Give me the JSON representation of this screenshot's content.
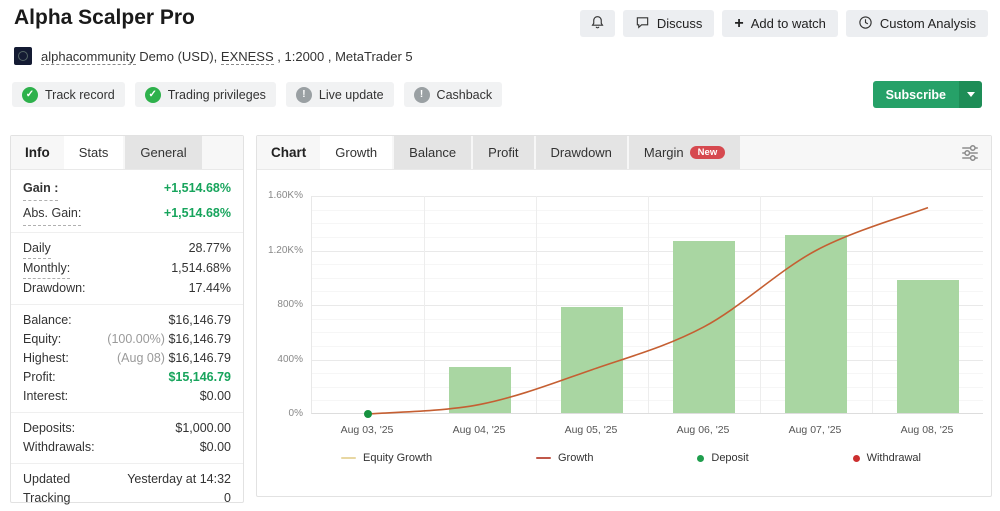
{
  "header": {
    "title": "Alpha Scalper Pro",
    "actions": [
      {
        "label": "Discuss",
        "icon": "chat-icon"
      },
      {
        "label": "Add to watch",
        "icon": "plus-icon"
      },
      {
        "label": "Custom Analysis",
        "icon": "clock-icon"
      }
    ],
    "account": {
      "user": "alphacommunity",
      "details_pre": "Demo (USD), ",
      "broker": "EXNESS",
      "details_post": " , 1:2000 , MetaTrader 5"
    },
    "badges": [
      {
        "label": "Track record",
        "status": "ok"
      },
      {
        "label": "Trading privileges",
        "status": "ok"
      },
      {
        "label": "Live update",
        "status": "warn"
      },
      {
        "label": "Cashback",
        "status": "warn"
      }
    ],
    "subscribe": {
      "label": "Subscribe"
    }
  },
  "info_panel": {
    "title_tab": "Info",
    "tabs": [
      {
        "label": "Stats",
        "active": true
      },
      {
        "label": "General",
        "active": false
      }
    ],
    "groups": [
      [
        {
          "label": "Gain :",
          "value": "+1,514.68%",
          "green": true,
          "underline": true,
          "bold": true
        },
        {
          "label": "Abs. Gain:",
          "value": "+1,514.68%",
          "green": true,
          "underline": true
        }
      ],
      [
        {
          "label": "Daily",
          "value": "28.77%",
          "underline": true
        },
        {
          "label": "Monthly:",
          "value": "1,514.68%",
          "underline": true
        },
        {
          "label": "Drawdown:",
          "value": "17.44%"
        }
      ],
      [
        {
          "label": "Balance:",
          "value": "$16,146.79"
        },
        {
          "label": "Equity:",
          "prefix": "(100.00%) ",
          "value": "$16,146.79"
        },
        {
          "label": "Highest:",
          "prefix": "(Aug 08) ",
          "value": "$16,146.79"
        },
        {
          "label": "Profit:",
          "value": "$15,146.79",
          "green": true
        },
        {
          "label": "Interest:",
          "value": "$0.00"
        }
      ],
      [
        {
          "label": "Deposits:",
          "value": "$1,000.00"
        },
        {
          "label": "Withdrawals:",
          "value": "$0.00"
        }
      ],
      [
        {
          "label": "Updated",
          "value": "Yesterday at 14:32"
        },
        {
          "label": "Tracking",
          "value": "0"
        }
      ]
    ]
  },
  "chart_panel": {
    "title_tab": "Chart",
    "tabs": [
      {
        "label": "Growth",
        "active": true
      },
      {
        "label": "Balance"
      },
      {
        "label": "Profit"
      },
      {
        "label": "Drawdown"
      },
      {
        "label": "Margin",
        "badge": "New"
      }
    ]
  },
  "chart_data": {
    "type": "bar",
    "note": "daily growth bars with cumulative growth line overlay",
    "categories": [
      "Aug 03, '25",
      "Aug 04, '25",
      "Aug 05, '25",
      "Aug 06, '25",
      "Aug 07, '25",
      "Aug 08, '25"
    ],
    "series": [
      {
        "name": "Growth",
        "type": "line",
        "color": "#c55f32",
        "values": [
          0,
          70,
          325,
          640,
          1200,
          1515
        ]
      },
      {
        "name": "Daily growth",
        "type": "bar",
        "color": "#a9d6a2",
        "values": [
          null,
          340,
          780,
          1265,
          1310,
          975
        ]
      }
    ],
    "markers": [
      {
        "type": "deposit",
        "x_index": 0,
        "value": 0,
        "color": "#16913f"
      }
    ],
    "title": "",
    "xlabel": "",
    "ylabel": "",
    "ylim": [
      0,
      1600
    ],
    "y_ticks": [
      {
        "v": 0,
        "label": "0%"
      },
      {
        "v": 400,
        "label": "400%"
      },
      {
        "v": 800,
        "label": "800%"
      },
      {
        "v": 1200,
        "label": "1.20K%"
      },
      {
        "v": 1600,
        "label": "1.60K%"
      }
    ],
    "y_minor_step": 100,
    "grid": true,
    "legend_position": "bottom",
    "legend": [
      {
        "label": "Equity Growth",
        "swatch": "line",
        "color": "#e8d7a2"
      },
      {
        "label": "Growth",
        "swatch": "line",
        "color": "#c0584a"
      },
      {
        "label": "Deposit",
        "swatch": "dot",
        "color": "#1f9e4d"
      },
      {
        "label": "Withdrawal",
        "swatch": "dot",
        "color": "#cc2f2f"
      }
    ]
  }
}
